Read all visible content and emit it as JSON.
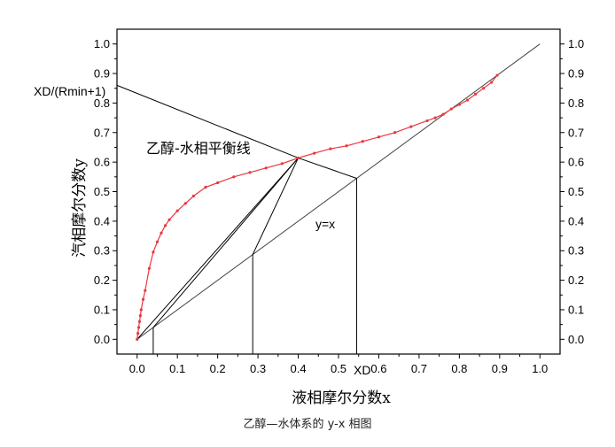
{
  "chart_data": {
    "type": "line",
    "xlabel": "液相摩尔分数x",
    "ylabel": "汽相摩尔分数y",
    "xlim": [
      -0.05,
      1.05
    ],
    "ylim": [
      -0.05,
      1.05
    ],
    "x_ticks": [
      "0.0",
      "0.1",
      "0.2",
      "0.3",
      "0.4",
      "0.5",
      "0.6",
      "0.7",
      "0.8",
      "0.9",
      "1.0"
    ],
    "y_ticks": [
      "0.0",
      "0.1",
      "0.2",
      "0.3",
      "0.4",
      "0.5",
      "0.6",
      "0.7",
      "0.8",
      "0.9",
      "1.0"
    ],
    "grid": false,
    "series": [
      {
        "name": "乙醇-水相平衡线",
        "color": "#e8383d",
        "x": [
          0.0,
          0.002,
          0.004,
          0.006,
          0.008,
          0.01,
          0.015,
          0.02,
          0.03,
          0.04,
          0.05,
          0.06,
          0.07,
          0.08,
          0.1,
          0.12,
          0.14,
          0.17,
          0.2,
          0.24,
          0.28,
          0.32,
          0.36,
          0.4,
          0.44,
          0.48,
          0.52,
          0.56,
          0.6,
          0.64,
          0.68,
          0.72,
          0.74,
          0.76,
          0.78,
          0.8,
          0.82,
          0.84,
          0.86,
          0.88,
          0.894
        ],
        "y": [
          0.0,
          0.02,
          0.04,
          0.06,
          0.08,
          0.1,
          0.135,
          0.165,
          0.24,
          0.295,
          0.33,
          0.36,
          0.385,
          0.405,
          0.435,
          0.46,
          0.485,
          0.515,
          0.53,
          0.55,
          0.565,
          0.58,
          0.595,
          0.614,
          0.63,
          0.645,
          0.655,
          0.67,
          0.685,
          0.7,
          0.72,
          0.74,
          0.75,
          0.762,
          0.78,
          0.795,
          0.81,
          0.83,
          0.85,
          0.87,
          0.894
        ]
      }
    ],
    "diagonal": {
      "label": "y=x",
      "x": [
        0,
        1
      ],
      "y": [
        0,
        1
      ]
    },
    "operating_lines": [
      {
        "x": [
          -0.05,
          0.4
        ],
        "y": [
          0.86,
          0.614
        ]
      },
      {
        "x": [
          0.4,
          0.545
        ],
        "y": [
          0.614,
          0.545
        ]
      },
      {
        "x": [
          0.04,
          0.4
        ],
        "y": [
          0.04,
          0.614
        ]
      },
      {
        "x": [
          0.0,
          0.4
        ],
        "y": [
          0.0,
          0.614
        ]
      },
      {
        "x": [
          0.287,
          0.4
        ],
        "y": [
          0.287,
          0.614
        ]
      }
    ],
    "vertical_lines": [
      {
        "x": 0.04,
        "y_from": -0.05,
        "y_to": 0.04
      },
      {
        "x": 0.287,
        "y_from": -0.05,
        "y_to": 0.287
      },
      {
        "x": 0.545,
        "y_from": -0.05,
        "y_to": 0.545
      }
    ],
    "annotations": {
      "curve_label": "乙醇-水相平衡线",
      "diagonal_label": "y=x",
      "intercept_label": "XD/(Rmin+1)",
      "xd_label": "XD"
    }
  },
  "caption": "乙醇—水体系的 y-x 相图"
}
